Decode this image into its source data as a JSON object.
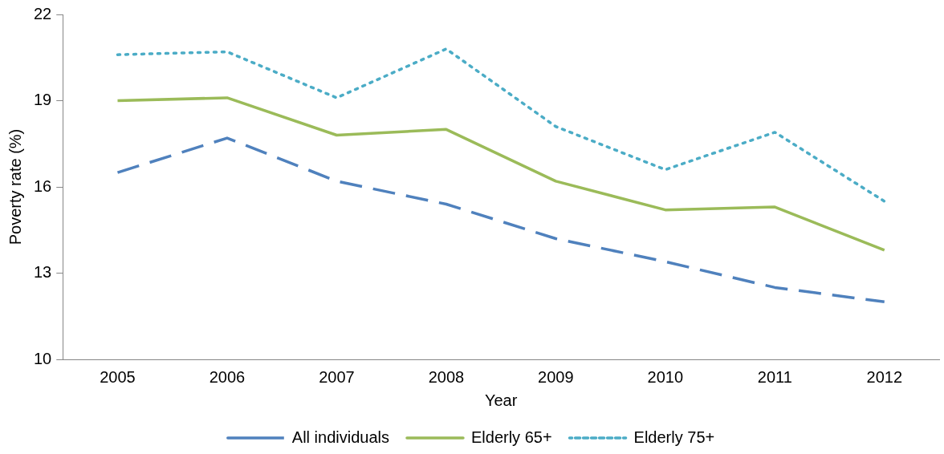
{
  "chart_data": {
    "type": "line",
    "xlabel": "Year",
    "ylabel": "Poverty rate (%)",
    "categories": [
      "2005",
      "2006",
      "2007",
      "2008",
      "2009",
      "2010",
      "2011",
      "2012"
    ],
    "series": [
      {
        "name": "All individuals",
        "color": "#4f81bd",
        "line_style": "dashed",
        "values": [
          16.5,
          17.7,
          16.2,
          15.4,
          14.2,
          13.4,
          12.5,
          12.0
        ]
      },
      {
        "name": "Elderly 65+",
        "color": "#9bbb59",
        "line_style": "solid",
        "values": [
          19.0,
          19.1,
          17.8,
          18.0,
          16.2,
          15.2,
          15.3,
          13.8
        ]
      },
      {
        "name": "Elderly 75+",
        "color": "#4bacc6",
        "line_style": "dotted",
        "values": [
          20.6,
          20.7,
          19.1,
          20.8,
          18.1,
          16.6,
          17.9,
          15.5
        ]
      }
    ],
    "ylim": [
      10,
      22
    ],
    "yticks": [
      10,
      13,
      16,
      19,
      22
    ],
    "grid": false,
    "legend": "bottom",
    "marker": "none"
  }
}
